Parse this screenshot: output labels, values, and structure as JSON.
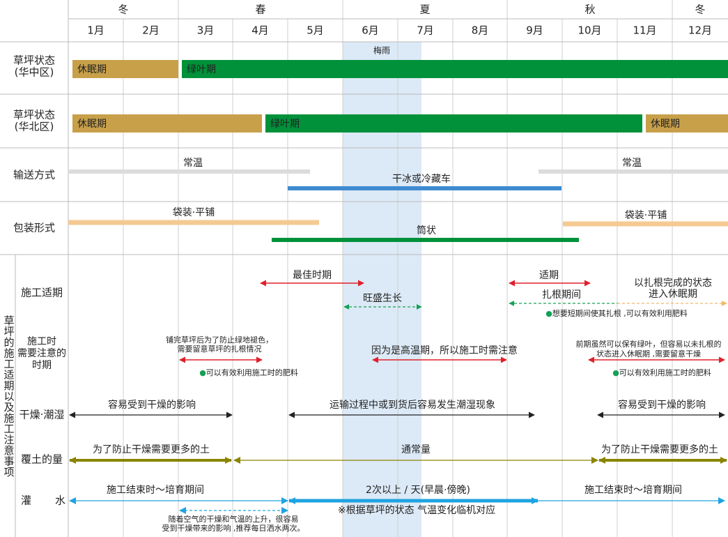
{
  "seasons": [
    "冬",
    "春",
    "夏",
    "秋",
    "冬"
  ],
  "months": [
    "1月",
    "2月",
    "3月",
    "4月",
    "5月",
    "6月",
    "7月",
    "8月",
    "9月",
    "10月",
    "11月",
    "12月"
  ],
  "rainy_season": "梅雨",
  "turf_central": {
    "label": [
      "草坪状态",
      "(华中区)"
    ],
    "bars": [
      "休眠期",
      "绿叶期"
    ]
  },
  "turf_north": {
    "label": [
      "草坪状态",
      "(华北区)"
    ],
    "bars": [
      "休眠期",
      "绿叶期",
      "休眠期"
    ]
  },
  "transport": {
    "label": "输送方式",
    "items": [
      "常温",
      "常温",
      "干冰或冷藏车"
    ]
  },
  "packaging": {
    "label": "包装形式",
    "items": [
      "袋装·平铺",
      "袋装·平铺",
      "筒状"
    ]
  },
  "section_label": "草坪的施工适期以及施工注意事项",
  "timing": {
    "label": "施工适期",
    "items": [
      "最佳时期",
      "旺盛生长",
      "适期",
      "扎根期间"
    ],
    "after": [
      "以扎根完成的状态",
      "进入休眠期"
    ],
    "note": "●想要短期间使其扎根 ,可以有效利用肥料"
  },
  "caution": {
    "label": [
      "施工时",
      "需要注意的",
      "时期"
    ],
    "left": [
      "铺完草坪后为了防止绿地褪色，",
      "需要留意草坪的扎根情况"
    ],
    "left_note": "●可以有效利用施工时的肥料",
    "middle": "因为是高温期，所以施工时需注意",
    "right": [
      "前期虽然可以保有绿叶，但容易以未扎根的",
      "状态进入休眠期 ,需要留意干燥"
    ],
    "right_note": "●可以有效利用施工时的肥料"
  },
  "moisture": {
    "label": "干燥·潮湿",
    "items": [
      "容易受到干燥的影响",
      "运输过程中或到货后容易发生潮湿现象",
      "容易受到干燥的影响"
    ]
  },
  "soil": {
    "label": "覆土的量",
    "items": [
      "为了防止干燥需要更多的土",
      "通常量",
      "为了防止干燥需要更多的土"
    ]
  },
  "water": {
    "label": "灌水",
    "items": [
      "施工结束时～培育期间",
      "2次以上 / 天(早晨·傍晚)",
      "施工结束时～培育期间"
    ],
    "note": [
      "随着空气的干燥和气温的上升，很容易",
      "受到干燥带来的影响 ,推荐每日洒水两次。"
    ],
    "remark": "※根据草坪的状态 气温变化临机对应"
  }
}
